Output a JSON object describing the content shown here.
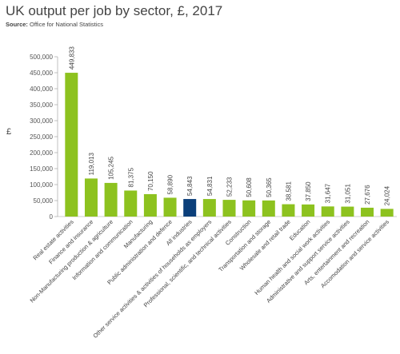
{
  "title": "UK output per job by sector, £, 2017",
  "source": {
    "label": "Source:",
    "text": "Office for National Statistics"
  },
  "chart_data": {
    "type": "bar",
    "title": "UK output per job by sector, £, 2017",
    "xlabel": "",
    "ylabel": "£",
    "ylim": [
      0,
      500000
    ],
    "yticks": [
      0,
      50000,
      100000,
      150000,
      200000,
      250000,
      300000,
      350000,
      400000,
      450000,
      500000
    ],
    "ytick_labels": [
      "0",
      "50,000",
      "100,000",
      "150,000",
      "200,000",
      "250,000",
      "300,000",
      "350,000",
      "400,000",
      "450,000",
      "500,000"
    ],
    "grid": false,
    "legend": "none",
    "bar_color": "#8dc21f",
    "highlight_color": "#0b3f7a",
    "highlight_category": "All industries",
    "categories": [
      "Real estate activities",
      "Finance and insurance",
      "Non-Manufacturing production & agriculture",
      "Information and communication",
      "Manufacturing",
      "Public administration and defence",
      "All industries",
      "Other service activities & activities of households as employers",
      "Professional, scientific, and technical activities",
      "Construction",
      "Transportation and storage",
      "Wholesale and retail trade",
      "Education",
      "Human health and social work activities",
      "Administrative and support service activities",
      "Arts, entertainment and recreation",
      "Accomodation and service activities"
    ],
    "values": [
      449833,
      119013,
      105245,
      81375,
      70150,
      58890,
      54843,
      54831,
      52233,
      50608,
      50365,
      38581,
      37850,
      31647,
      31051,
      27676,
      24024
    ],
    "value_labels": [
      "449,833",
      "119,013",
      "105,245",
      "81,375",
      "70,150",
      "58,890",
      "54,843",
      "54,831",
      "52,233",
      "50,608",
      "50,365",
      "38,581",
      "37,850",
      "31,647",
      "31,051",
      "27,676",
      "24,024"
    ]
  }
}
